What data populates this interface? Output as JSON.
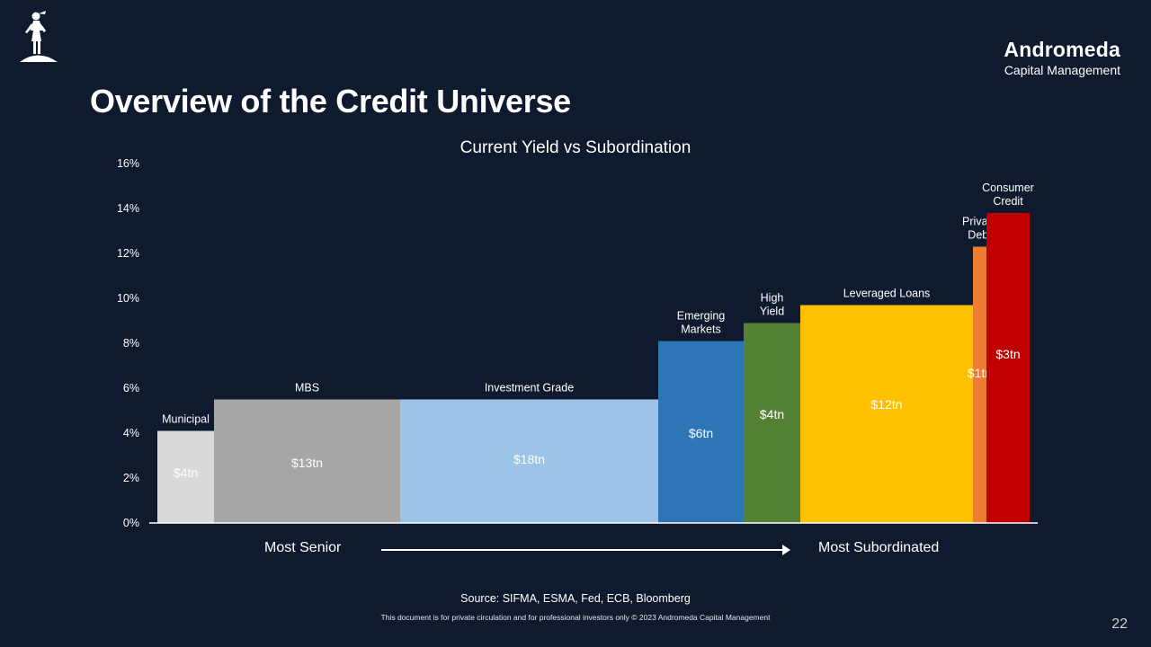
{
  "title": "Overview of the Credit Universe",
  "brand": {
    "name": "Andromeda",
    "subtitle": "Capital Management",
    "logo_icon": "woman-figure-logo-icon"
  },
  "chart_data": {
    "type": "bar",
    "title": "Current Yield vs Subordination",
    "ylabel": "",
    "xlabel": "",
    "ylim": [
      0,
      16
    ],
    "yticks": [
      "0%",
      "2%",
      "4%",
      "6%",
      "8%",
      "10%",
      "12%",
      "14%",
      "16%"
    ],
    "grid": false,
    "legend": "none",
    "width_encodes": "market size",
    "categories": [
      "Municipal",
      "MBS",
      "Investment Grade",
      "Emerging Markets",
      "High Yield",
      "Leveraged Loans",
      "Private Debt",
      "Consumer Credit"
    ],
    "category_label_lines": [
      [
        "Municipal"
      ],
      [
        "MBS"
      ],
      [
        "Investment Grade"
      ],
      [
        "Emerging",
        "Markets"
      ],
      [
        "High",
        "Yield"
      ],
      [
        "Leveraged Loans"
      ],
      [
        "Private",
        "Debt"
      ],
      [
        "Consumer",
        "Credit"
      ]
    ],
    "values": [
      4.1,
      5.5,
      5.5,
      8.1,
      8.9,
      9.7,
      12.3,
      13.8
    ],
    "size_labels": [
      "$4tn",
      "$13tn",
      "$18tn",
      "$6tn",
      "$4tn",
      "$12tn",
      "$1tn",
      "$3tn"
    ],
    "colors": [
      "#d9d9d9",
      "#a6a6a6",
      "#9dc3e6",
      "#2e75b6",
      "#548235",
      "#ffc000",
      "#ed7d31",
      "#c00000"
    ]
  },
  "axis_notes": {
    "left": "Most Senior",
    "right": "Most Subordinated"
  },
  "source": "Source: SIFMA, ESMA, Fed, ECB, Bloomberg",
  "disclaimer": "This document is for private circulation and for professional investors only © 2023 Andromeda Capital Management",
  "page_number": "22"
}
